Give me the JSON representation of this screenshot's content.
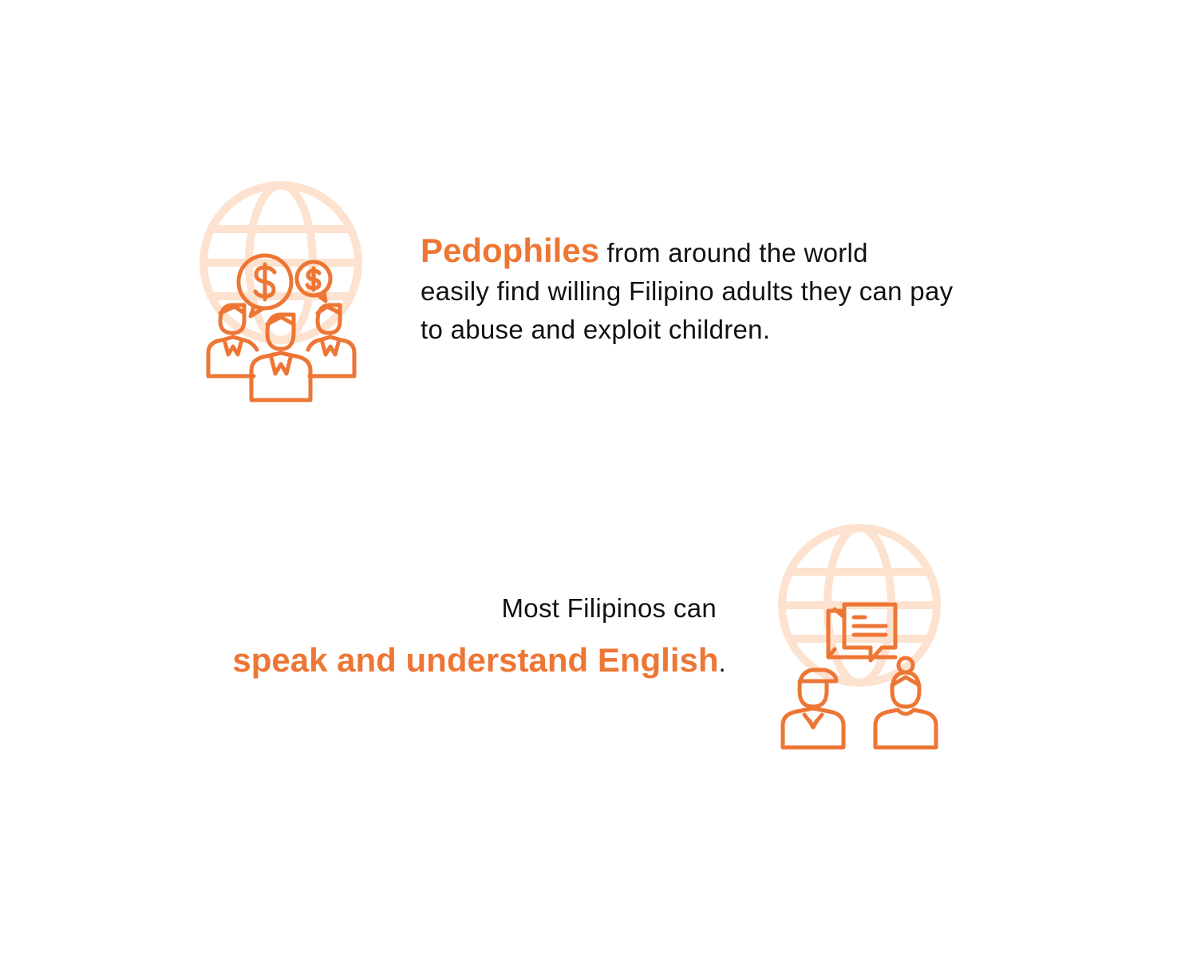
{
  "colors": {
    "accent": "#ee7634",
    "globe": "#fde2cf",
    "text": "#111111",
    "background": "#ffffff"
  },
  "icons": {
    "first": "globe-people-money-icon",
    "second": "globe-people-chat-icon"
  },
  "section1": {
    "highlight": "Pedophiles",
    "line1_rest": " from around the world",
    "line2": "easily find willing Filipino adults they can pay",
    "line3": "to abuse and exploit children."
  },
  "section2": {
    "line1": "Most Filipinos can",
    "highlight": "speak and understand English",
    "period": "."
  }
}
